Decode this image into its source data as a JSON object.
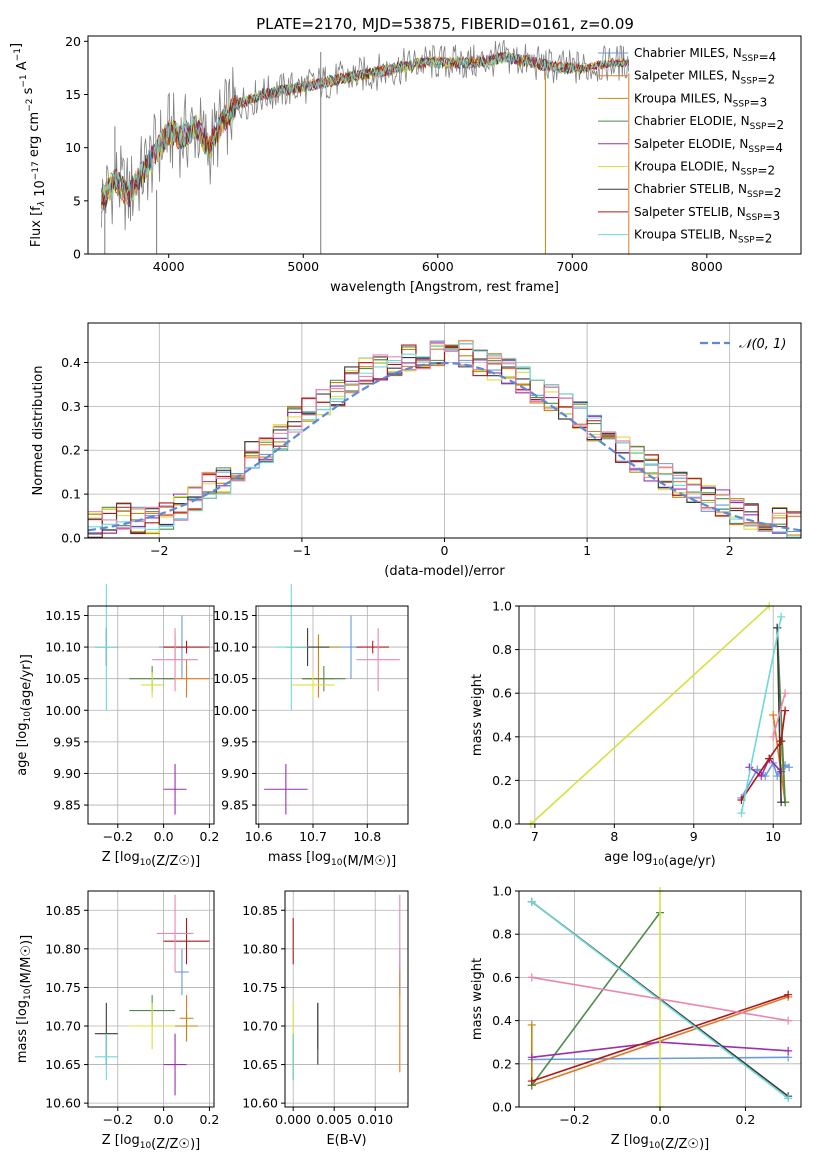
{
  "title": "PLATE=2170, MJD=53875, FIBERID=0161, z=0.09",
  "series_colors": [
    "#6a9ae0",
    "#e07a2a",
    "#c6860c",
    "#4f8a4a",
    "#9a30b0",
    "#d8e040",
    "#3a3a3a",
    "#b01818",
    "#6ed8d8",
    "#e888b0",
    "#7a7a7a"
  ],
  "chart_data": [
    {
      "type": "line",
      "title": "PLATE=2170, MJD=53875, FIBERID=0161, z=0.09",
      "xlabel": "wavelength [Angstrom, rest frame]",
      "ylabel": "Flux [f_λ 10^-17 erg cm^-2 s^-1 A^-1]",
      "xlim": [
        3400,
        8700
      ],
      "ylim": [
        0,
        20.5
      ],
      "xticks": [
        "4000",
        "5000",
        "6000",
        "7000",
        "8000"
      ],
      "yticks": [
        "0",
        "5",
        "10",
        "15",
        "20"
      ],
      "grid": false,
      "legend_position": "right",
      "legend": [
        {
          "name": "Chabrier MILES, N_SSP=4",
          "color": "#6a9ae0"
        },
        {
          "name": "Salpeter MILES, N_SSP=2",
          "color": "#e07a2a"
        },
        {
          "name": "Kroupa MILES, N_SSP=3",
          "color": "#c6860c"
        },
        {
          "name": "Chabrier ELODIE, N_SSP=2",
          "color": "#4f8a4a"
        },
        {
          "name": "Salpeter ELODIE, N_SSP=4",
          "color": "#9a30b0"
        },
        {
          "name": "Kroupa ELODIE, N_SSP=2",
          "color": "#d8e040"
        },
        {
          "name": "Chabrier STELIB, N_SSP=2",
          "color": "#3a3a3a"
        },
        {
          "name": "Salpeter STELIB, N_SSP=3",
          "color": "#b01818"
        },
        {
          "name": "Kroupa STELIB, N_SSP=2",
          "color": "#6ed8d8"
        }
      ],
      "spectrum_continuum": {
        "x": [
          3500,
          3600,
          3700,
          3800,
          3900,
          4000,
          4100,
          4200,
          4300,
          4400,
          4500,
          4700,
          4900,
          5100,
          5300,
          5500,
          5700,
          5900,
          6100,
          6300,
          6500,
          6700,
          6900,
          7100,
          7300,
          7400
        ],
        "y": [
          5.0,
          7.0,
          5.5,
          7.5,
          9.5,
          11.5,
          11.0,
          12.0,
          10.0,
          12.5,
          14.0,
          15.0,
          15.5,
          16.0,
          16.5,
          17.0,
          17.5,
          18.0,
          18.0,
          18.0,
          18.5,
          18.0,
          17.5,
          17.5,
          18.0,
          18.0
        ]
      }
    },
    {
      "type": "line",
      "xlabel": "(data-model)/error",
      "ylabel": "Normed distribution",
      "xlim": [
        -2.5,
        2.5
      ],
      "ylim": [
        0,
        0.49
      ],
      "xticks": [
        "−2",
        "−1",
        "0",
        "1",
        "2"
      ],
      "yticks": [
        "0.0",
        "0.1",
        "0.2",
        "0.3",
        "0.4"
      ],
      "grid": true,
      "legend_position": "upper right",
      "legend": [
        {
          "name": "𝒩(0, 1)",
          "color": "#5b8bd8"
        }
      ],
      "histogram_bins": {
        "start": -2.5,
        "width": 0.1,
        "values": [
          0.03,
          0.04,
          0.05,
          0.04,
          0.04,
          0.05,
          0.07,
          0.09,
          0.12,
          0.13,
          0.16,
          0.19,
          0.2,
          0.23,
          0.27,
          0.29,
          0.31,
          0.33,
          0.36,
          0.38,
          0.39,
          0.4,
          0.41,
          0.4,
          0.42,
          0.41,
          0.42,
          0.4,
          0.39,
          0.38,
          0.36,
          0.33,
          0.32,
          0.3,
          0.28,
          0.25,
          0.22,
          0.2,
          0.18,
          0.16,
          0.14,
          0.12,
          0.11,
          0.09,
          0.08,
          0.06,
          0.05,
          0.04,
          0.04,
          0.03
        ]
      }
    },
    {
      "type": "scatter",
      "xlabel": "Z [log10(Z/Z☉)]",
      "ylabel": "age [log10(age/yr)]",
      "xlim": [
        -0.33,
        0.22
      ],
      "ylim": [
        9.82,
        10.165
      ],
      "xticks": [
        "−0.2",
        "0.0",
        "0.2"
      ],
      "yticks": [
        "9.85",
        "9.90",
        "9.95",
        "10.00",
        "10.05",
        "10.10",
        "10.15"
      ],
      "grid": true,
      "points": [
        {
          "x": 0.08,
          "y": 10.1,
          "xerr": 0.1,
          "yerr": 0.05
        },
        {
          "x": 0.1,
          "y": 10.05,
          "xerr": 0.1,
          "yerr": 0.03
        },
        {
          "x": 0.05,
          "y": 10.1,
          "xerr": 0.05,
          "yerr": 0.02
        },
        {
          "x": -0.05,
          "y": 10.05,
          "xerr": 0.1,
          "yerr": 0.02
        },
        {
          "x": 0.05,
          "y": 9.875,
          "xerr": 0.05,
          "yerr": 0.04
        },
        {
          "x": -0.05,
          "y": 10.04,
          "xerr": 0.05,
          "yerr": 0.02
        },
        {
          "x": -0.25,
          "y": 10.1,
          "xerr": 0.05,
          "yerr": 0.03
        },
        {
          "x": 0.1,
          "y": 10.1,
          "xerr": 0.1,
          "yerr": 0.01
        },
        {
          "x": -0.25,
          "y": 10.1,
          "xerr": 0.05,
          "yerr": 0.1
        },
        {
          "x": 0.05,
          "y": 10.08,
          "xerr": 0.1,
          "yerr": 0.05
        }
      ]
    },
    {
      "type": "scatter",
      "xlabel": "mass [log10(M/M☉)]",
      "ylabel": "",
      "xlim": [
        10.595,
        10.875
      ],
      "ylim": [
        9.82,
        10.165
      ],
      "xticks": [
        "10.6",
        "10.7",
        "10.8"
      ],
      "yticks": [
        "9.85",
        "9.90",
        "9.95",
        "10.00",
        "10.05",
        "10.10",
        "10.15"
      ],
      "grid": true,
      "points": [
        {
          "x": 10.77,
          "y": 10.1,
          "xerr": 0.02,
          "yerr": 0.05
        },
        {
          "x": 10.71,
          "y": 10.05,
          "xerr": 0.03,
          "yerr": 0.03
        },
        {
          "x": 10.71,
          "y": 10.1,
          "xerr": 0.04,
          "yerr": 0.02
        },
        {
          "x": 10.72,
          "y": 10.05,
          "xerr": 0.04,
          "yerr": 0.02
        },
        {
          "x": 10.65,
          "y": 9.875,
          "xerr": 0.04,
          "yerr": 0.04
        },
        {
          "x": 10.7,
          "y": 10.04,
          "xerr": 0.04,
          "yerr": 0.02
        },
        {
          "x": 10.69,
          "y": 10.1,
          "xerr": 0.04,
          "yerr": 0.03
        },
        {
          "x": 10.81,
          "y": 10.1,
          "xerr": 0.03,
          "yerr": 0.01
        },
        {
          "x": 10.66,
          "y": 10.1,
          "xerr": 0.03,
          "yerr": 0.1
        },
        {
          "x": 10.82,
          "y": 10.08,
          "xerr": 0.04,
          "yerr": 0.05
        }
      ]
    },
    {
      "type": "line",
      "xlabel": "age log10(age/yr)",
      "ylabel": "mass weight",
      "xlim": [
        6.8,
        10.35
      ],
      "ylim": [
        0,
        1
      ],
      "xticks": [
        "7",
        "8",
        "9",
        "10"
      ],
      "yticks": [
        "0.0",
        "0.2",
        "0.4",
        "0.6",
        "0.8",
        "1.0"
      ],
      "grid": true,
      "series": [
        {
          "x": [
            9.6,
            9.8,
            9.9,
            10.0,
            10.05,
            10.1,
            10.15,
            10.2
          ],
          "y": [
            0.12,
            0.25,
            0.22,
            0.28,
            0.22,
            0.25,
            0.27,
            0.26
          ]
        },
        {
          "x": [
            10.0,
            10.15
          ],
          "y": [
            0.5,
            0.1
          ]
        },
        {
          "x": [
            10.1,
            10.15
          ],
          "y": [
            0.38,
            0.1
          ]
        },
        {
          "x": [
            10.05,
            10.15
          ],
          "y": [
            0.9,
            0.1
          ]
        },
        {
          "x": [
            9.7,
            9.85,
            9.95,
            10.1
          ],
          "y": [
            0.26,
            0.22,
            0.3,
            0.24
          ]
        },
        {
          "x": [
            6.95,
            9.95
          ],
          "y": [
            0.0,
            1.0
          ]
        },
        {
          "x": [
            10.05,
            10.1
          ],
          "y": [
            0.9,
            0.1
          ]
        },
        {
          "x": [
            9.6,
            9.95,
            10.1,
            10.15
          ],
          "y": [
            0.11,
            0.3,
            0.38,
            0.52
          ]
        },
        {
          "x": [
            9.6,
            10.1
          ],
          "y": [
            0.05,
            0.95
          ]
        },
        {
          "x": [
            10.0,
            10.15
          ],
          "y": [
            0.4,
            0.6
          ]
        }
      ]
    },
    {
      "type": "scatter",
      "xlabel": "Z [log10(Z/Z☉)]",
      "ylabel": "mass [log10(M/M☉)]",
      "xlim": [
        -0.33,
        0.22
      ],
      "ylim": [
        10.595,
        10.875
      ],
      "xticks": [
        "−0.2",
        "0.0",
        "0.2"
      ],
      "yticks": [
        "10.60",
        "10.65",
        "10.70",
        "10.75",
        "10.80",
        "10.85"
      ],
      "grid": true,
      "points": [
        {
          "x": 0.08,
          "y": 10.77,
          "xerr": 0.03,
          "yerr": 0.03
        },
        {
          "x": 0.1,
          "y": 10.71,
          "xerr": 0.03,
          "yerr": 0.03
        },
        {
          "x": 0.1,
          "y": 10.7,
          "xerr": 0.05,
          "yerr": 0.02
        },
        {
          "x": -0.05,
          "y": 10.72,
          "xerr": 0.1,
          "yerr": 0.02
        },
        {
          "x": 0.05,
          "y": 10.65,
          "xerr": 0.05,
          "yerr": 0.04
        },
        {
          "x": -0.05,
          "y": 10.7,
          "xerr": 0.1,
          "yerr": 0.03
        },
        {
          "x": -0.25,
          "y": 10.69,
          "xerr": 0.05,
          "yerr": 0.04
        },
        {
          "x": 0.1,
          "y": 10.81,
          "xerr": 0.1,
          "yerr": 0.03
        },
        {
          "x": -0.25,
          "y": 10.66,
          "xerr": 0.05,
          "yerr": 0.03
        },
        {
          "x": 0.05,
          "y": 10.82,
          "xerr": 0.08,
          "yerr": 0.05
        }
      ]
    },
    {
      "type": "scatter",
      "xlabel": "E(B-V)",
      "ylabel": "",
      "xlim": [
        -0.001,
        0.014
      ],
      "ylim": [
        10.595,
        10.875
      ],
      "xticks": [
        "0.000",
        "0.005",
        "0.010"
      ],
      "yticks": [
        "10.60",
        "10.65",
        "10.70",
        "10.75",
        "10.80",
        "10.85"
      ],
      "grid": true,
      "points": [
        {
          "x": 0.013,
          "y": 10.77,
          "yerr": 0.03
        },
        {
          "x": 0.013,
          "y": 10.71,
          "yerr": 0.07
        },
        {
          "x": 0.0,
          "y": 10.66,
          "yerr": 0.03
        },
        {
          "x": 0.003,
          "y": 10.7,
          "yerr": 0.03
        },
        {
          "x": 0.0,
          "y": 10.66,
          "yerr": 0.03
        },
        {
          "x": 0.0,
          "y": 10.68,
          "yerr": 0.05
        },
        {
          "x": 0.003,
          "y": 10.69,
          "yerr": 0.04
        },
        {
          "x": 0.0,
          "y": 10.81,
          "yerr": 0.03
        },
        {
          "x": 0.0,
          "y": 10.66,
          "yerr": 0.03
        },
        {
          "x": 0.013,
          "y": 10.82,
          "yerr": 0.05
        }
      ]
    },
    {
      "type": "line",
      "xlabel": "Z [log10(Z/Z☉)]",
      "ylabel": "mass weight",
      "xlim": [
        -0.33,
        0.33
      ],
      "ylim": [
        0,
        1
      ],
      "xticks": [
        "−0.2",
        "0.0",
        "0.2"
      ],
      "yticks": [
        "0.0",
        "0.2",
        "0.4",
        "0.6",
        "0.8",
        "1.0"
      ],
      "grid": true,
      "series": [
        {
          "x": [
            -0.3,
            0.3
          ],
          "y": [
            0.22,
            0.23
          ]
        },
        {
          "x": [
            -0.3,
            0.3
          ],
          "y": [
            0.1,
            0.51
          ]
        },
        {
          "x": [
            -0.3,
            -0.3
          ],
          "y": [
            0.38,
            0.1
          ]
        },
        {
          "x": [
            -0.3,
            0.0
          ],
          "y": [
            0.1,
            0.9
          ]
        },
        {
          "x": [
            -0.3,
            0.0,
            0.3
          ],
          "y": [
            0.23,
            0.3,
            0.26
          ]
        },
        {
          "x": [
            0.0,
            0.0
          ],
          "y": [
            0.0,
            1.0
          ]
        },
        {
          "x": [
            -0.3,
            0.3
          ],
          "y": [
            0.95,
            0.05
          ]
        },
        {
          "x": [
            -0.3,
            0.3
          ],
          "y": [
            0.12,
            0.52
          ]
        },
        {
          "x": [
            -0.3,
            0.3
          ],
          "y": [
            0.95,
            0.04
          ]
        },
        {
          "x": [
            -0.3,
            0.3
          ],
          "y": [
            0.6,
            0.4
          ]
        }
      ]
    }
  ]
}
